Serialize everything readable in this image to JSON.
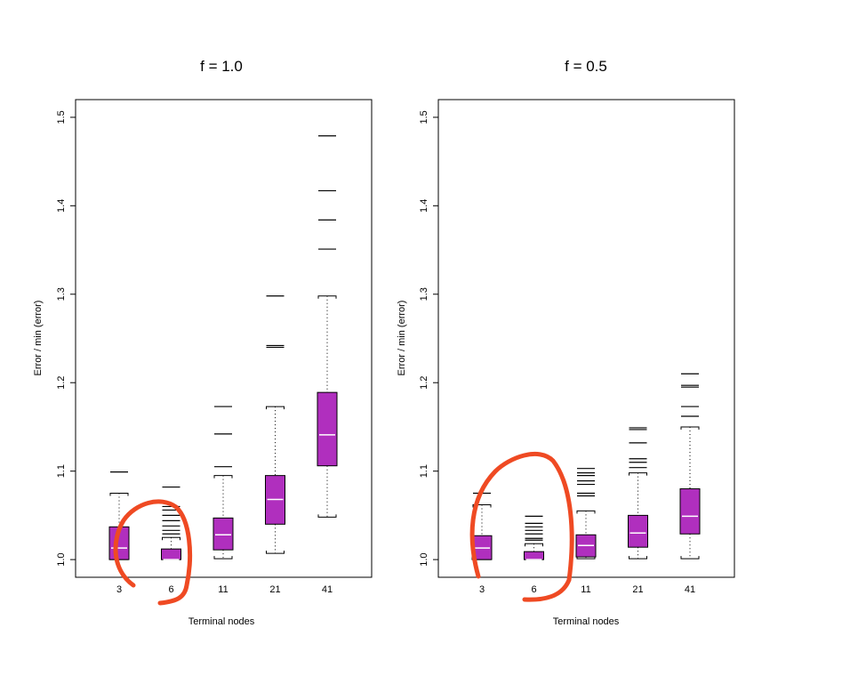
{
  "chart_data": [
    {
      "type": "boxplot",
      "title": "f = 1.0",
      "xlabel": "Terminal nodes",
      "ylabel": "Error / min (error)",
      "ylim": [
        0.98,
        1.52
      ],
      "yticks": [
        "1.0",
        "1.1",
        "1.2",
        "1.3",
        "1.4",
        "1.5"
      ],
      "categories": [
        "3",
        "6",
        "11",
        "21",
        "41"
      ],
      "box_color": "#b02fbe",
      "boxes": [
        {
          "q1": 1.0,
          "median": 1.013,
          "q3": 1.037,
          "whisker_low": 1.0,
          "whisker_high": 1.075,
          "outliers": [
            1.099
          ]
        },
        {
          "q1": 1.0,
          "median": 1.0,
          "q3": 1.012,
          "whisker_low": 1.0,
          "whisker_high": 1.025,
          "outliers": [
            1.029,
            1.033,
            1.038,
            1.044,
            1.05,
            1.056,
            1.06,
            1.082
          ]
        },
        {
          "q1": 1.011,
          "median": 1.028,
          "q3": 1.047,
          "whisker_low": 1.001,
          "whisker_high": 1.095,
          "outliers": [
            1.105,
            1.142,
            1.173
          ]
        },
        {
          "q1": 1.04,
          "median": 1.068,
          "q3": 1.095,
          "whisker_low": 1.007,
          "whisker_high": 1.173,
          "outliers": [
            1.24,
            1.242,
            1.298
          ]
        },
        {
          "q1": 1.106,
          "median": 1.141,
          "q3": 1.189,
          "whisker_low": 1.048,
          "whisker_high": 1.298,
          "outliers": [
            1.351,
            1.384,
            1.417,
            1.479
          ]
        }
      ]
    },
    {
      "type": "boxplot",
      "title": "f = 0.5",
      "xlabel": "Terminal nodes",
      "ylabel": "Error / min (error)",
      "ylim": [
        0.98,
        1.52
      ],
      "yticks": [
        "1.0",
        "1.1",
        "1.2",
        "1.3",
        "1.4",
        "1.5"
      ],
      "categories": [
        "3",
        "6",
        "11",
        "21",
        "41"
      ],
      "box_color": "#b02fbe",
      "boxes": [
        {
          "q1": 1.0,
          "median": 1.013,
          "q3": 1.027,
          "whisker_low": 1.0,
          "whisker_high": 1.062,
          "outliers": [
            1.075
          ]
        },
        {
          "q1": 1.0,
          "median": 1.0,
          "q3": 1.009,
          "whisker_low": 1.0,
          "whisker_high": 1.018,
          "outliers": [
            1.022,
            1.024,
            1.029,
            1.033,
            1.037,
            1.041,
            1.049
          ]
        },
        {
          "q1": 1.003,
          "median": 1.016,
          "q3": 1.028,
          "whisker_low": 1.001,
          "whisker_high": 1.055,
          "outliers": [
            1.072,
            1.075,
            1.085,
            1.089,
            1.095,
            1.098,
            1.103
          ]
        },
        {
          "q1": 1.014,
          "median": 1.03,
          "q3": 1.05,
          "whisker_low": 1.001,
          "whisker_high": 1.098,
          "outliers": [
            1.104,
            1.11,
            1.114,
            1.132,
            1.147,
            1.149
          ]
        },
        {
          "q1": 1.029,
          "median": 1.049,
          "q3": 1.08,
          "whisker_low": 1.001,
          "whisker_high": 1.15,
          "outliers": [
            1.162,
            1.173,
            1.195,
            1.197,
            1.21
          ]
        }
      ]
    }
  ],
  "annotation_color": "#ef4a23"
}
